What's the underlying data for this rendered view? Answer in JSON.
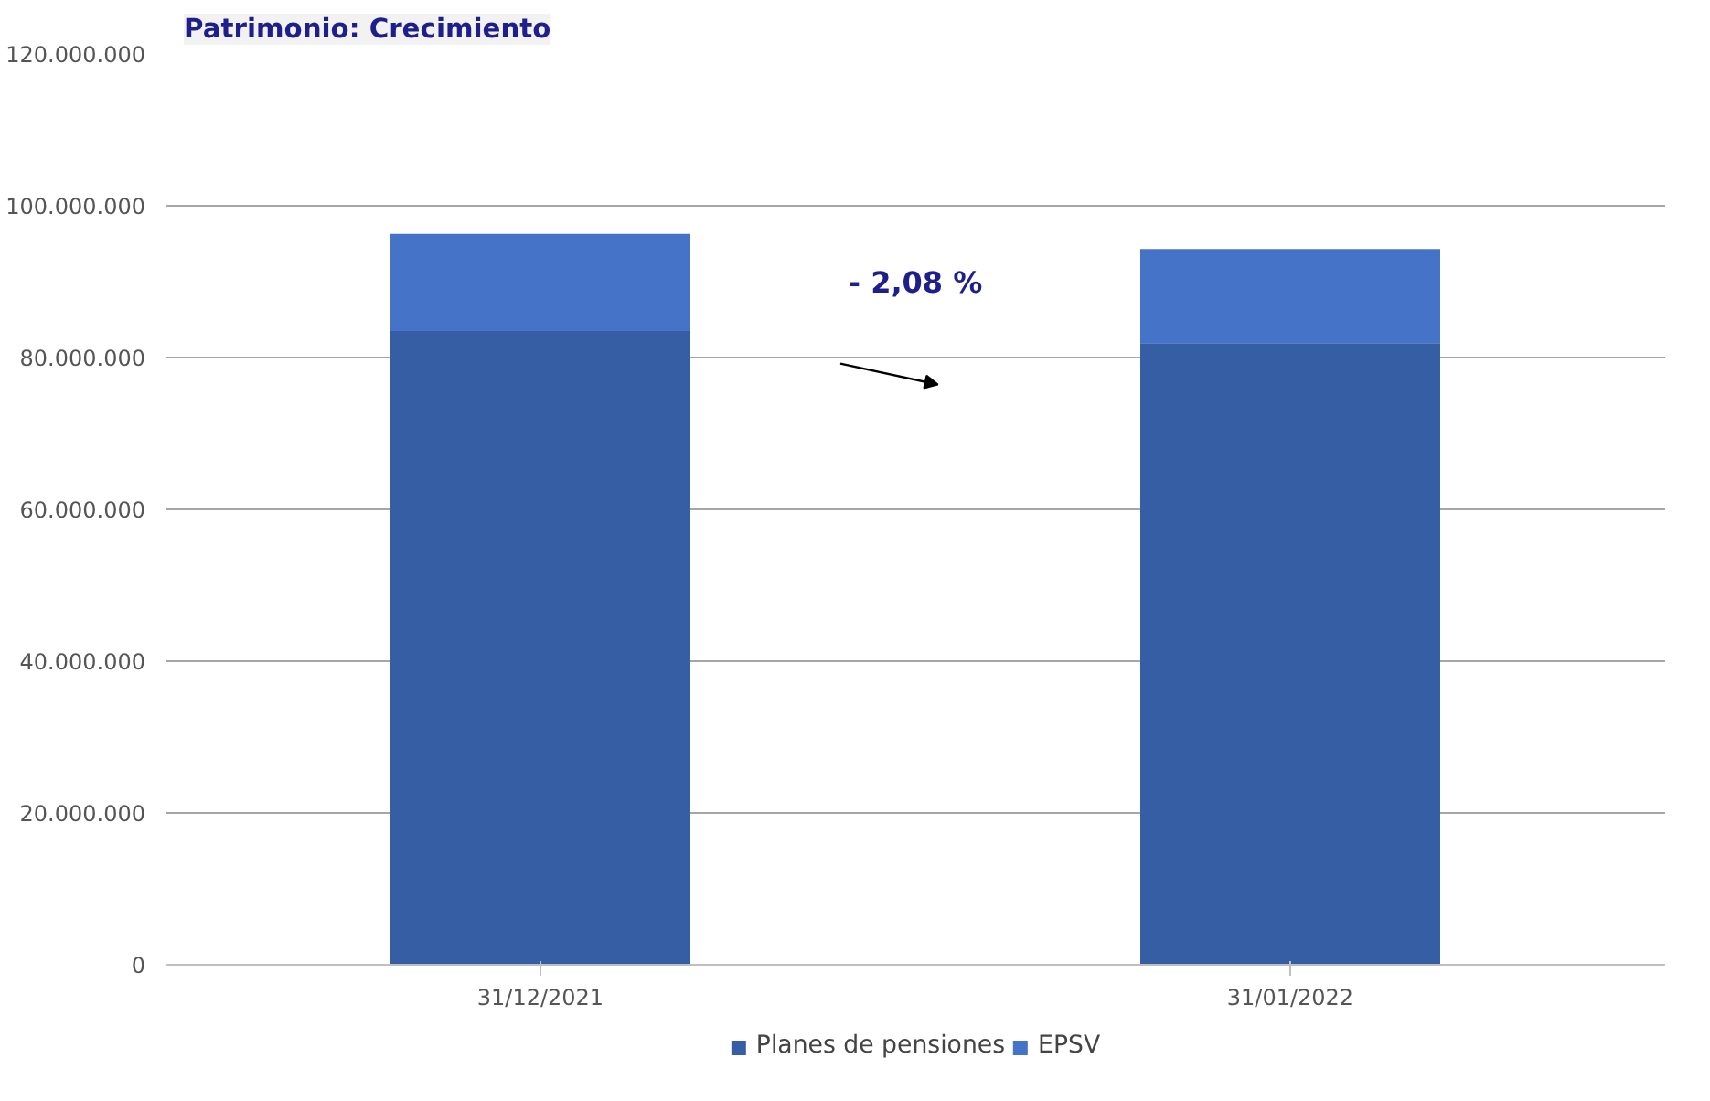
{
  "chart_data": {
    "type": "bar",
    "title": "Patrimonio: Crecimiento",
    "categories": [
      "31/12/2021",
      "31/01/2022"
    ],
    "stacked": true,
    "series": [
      {
        "name": "Planes de pensiones",
        "color": "#355ea4",
        "values": [
          83500000,
          81900000
        ]
      },
      {
        "name": "EPSV",
        "color": "#4473c8",
        "values": [
          12800000,
          12400000
        ]
      }
    ],
    "ylim": [
      0,
      120000000
    ],
    "yticks": [
      {
        "value": 0,
        "label": "0"
      },
      {
        "value": 20000000,
        "label": "20.000.000"
      },
      {
        "value": 40000000,
        "label": "40.000.000"
      },
      {
        "value": 60000000,
        "label": "60.000.000"
      },
      {
        "value": 80000000,
        "label": "80.000.000"
      },
      {
        "value": 100000000,
        "label": "100.000.000"
      },
      {
        "value": 120000000,
        "label": "120.000.000"
      }
    ],
    "grid": "y",
    "legend": "bottom",
    "annotations": [
      "- 2,08 %"
    ]
  }
}
